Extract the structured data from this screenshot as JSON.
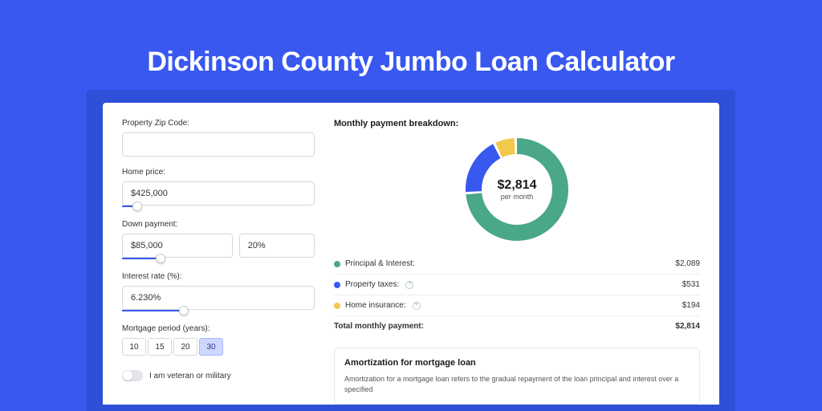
{
  "page": {
    "title": "Dickinson County Jumbo Loan Calculator",
    "background_color": "#3858f0",
    "frame_color": "#2e4fd8",
    "panel_color": "#ffffff"
  },
  "form": {
    "zip": {
      "label": "Property Zip Code:",
      "value": ""
    },
    "home_price": {
      "label": "Home price:",
      "value": "$425,000",
      "slider_pct": 8
    },
    "down_payment": {
      "label": "Down payment:",
      "amount": "$85,000",
      "percent": "20%",
      "slider_pct": 20
    },
    "interest_rate": {
      "label": "Interest rate (%):",
      "value": "6.230%",
      "slider_pct": 32
    },
    "mortgage_period": {
      "label": "Mortgage period (years):",
      "options": [
        "10",
        "15",
        "20",
        "30"
      ],
      "selected": "30"
    },
    "veteran": {
      "label": "I am veteran or military",
      "on": false
    }
  },
  "breakdown": {
    "title": "Monthly payment breakdown:",
    "center_amount": "$2,814",
    "center_sub": "per month",
    "donut": {
      "segments": [
        {
          "color": "#4aa789",
          "value": 2089
        },
        {
          "color": "#3858f0",
          "value": 531
        },
        {
          "color": "#f2c94c",
          "value": 194
        }
      ],
      "diameter": 128,
      "stroke_width": 20
    },
    "items": [
      {
        "label": "Principal & Interest:",
        "value": "$2,089",
        "color": "#4aa789",
        "info": false
      },
      {
        "label": "Property taxes:",
        "value": "$531",
        "color": "#3858f0",
        "info": true
      },
      {
        "label": "Home insurance:",
        "value": "$194",
        "color": "#f2c94c",
        "info": true
      }
    ],
    "total_label": "Total monthly payment:",
    "total_value": "$2,814"
  },
  "amortization": {
    "title": "Amortization for mortgage loan",
    "text": "Amortization for a mortgage loan refers to the gradual repayment of the loan principal and interest over a specified"
  }
}
